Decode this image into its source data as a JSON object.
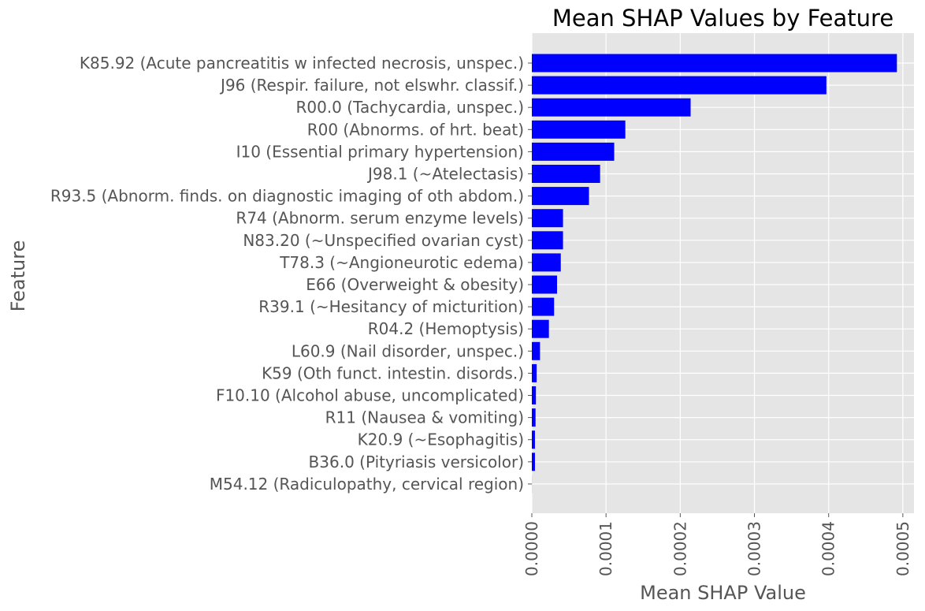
{
  "chart_data": {
    "type": "bar",
    "orientation": "horizontal",
    "title": "Mean SHAP Values by Feature",
    "xlabel": "Mean SHAP Value",
    "ylabel": "Feature",
    "xlim": [
      0,
      0.000515
    ],
    "xticks": [
      0,
      0.0001,
      0.0002,
      0.0003,
      0.0004,
      0.0005
    ],
    "xtick_labels": [
      "0.0000",
      "0.0001",
      "0.0002",
      "0.0003",
      "0.0004",
      "0.0005"
    ],
    "categories": [
      "K85.92 (Acute pancreatitis w infected necrosis, unspec.)",
      "J96 (Respir. failure, not elswhr. classif.)",
      "R00.0 (Tachycardia, unspec.)",
      "R00 (Abnorms. of hrt. beat)",
      "I10 (Essential primary hypertension)",
      "J98.1 (~Atelectasis)",
      "R93.5 (Abnorm. finds. on diagnostic imaging of oth abdom.)",
      "R74 (Abnorm. serum enzyme levels)",
      "N83.20 (~Unspecified ovarian cyst)",
      "T78.3 (~Angioneurotic edema)",
      "E66 (Overweight & obesity)",
      "R39.1 (~Hesitancy of micturition)",
      "R04.2 (Hemoptysis)",
      "L60.9 (Nail disorder, unspec.)",
      "K59 (Oth funct. intestin. disords.)",
      "F10.10 (Alcohol abuse, uncomplicated)",
      "R11 (Nausea & vomiting)",
      "K20.9 (~Esophagitis)",
      "B36.0 (Pityriasis versicolor)",
      "M54.12 (Radiculopathy, cervical region)"
    ],
    "values": [
      0.000492,
      0.000397,
      0.000214,
      0.000126,
      0.000111,
      9.2e-05,
      7.7e-05,
      4.2e-05,
      4.2e-05,
      3.9e-05,
      3.4e-05,
      3e-05,
      2.3e-05,
      1.1e-05,
      6.5e-06,
      5.5e-06,
      5e-06,
      4.2e-06,
      4.2e-06,
      1e-07
    ],
    "bar_color": "#0000ff",
    "background_color": "#e5e5e5",
    "grid_color": "#ffffff",
    "grid": true
  }
}
